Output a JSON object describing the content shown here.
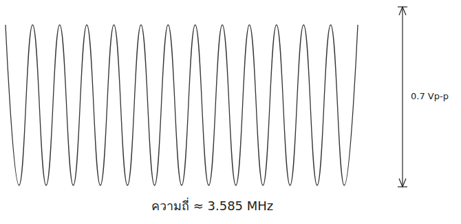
{
  "chart_data": {
    "type": "line",
    "x": [
      0,
      1,
      2,
      3,
      4,
      5,
      6,
      7,
      8,
      9,
      10,
      11,
      12,
      13,
      14,
      15,
      16,
      17,
      18,
      19,
      20,
      21,
      22,
      23,
      24,
      25,
      26
    ],
    "values": [
      0.35,
      -0.35,
      0.35,
      -0.35,
      0.35,
      -0.35,
      0.35,
      -0.35,
      0.35,
      -0.35,
      0.35,
      -0.35,
      0.35,
      -0.35,
      0.35,
      -0.35,
      0.35,
      -0.35,
      0.35,
      -0.35,
      0.35,
      -0.35,
      0.35,
      -0.35,
      0.35,
      -0.35,
      0.35
    ],
    "xlim": [
      0,
      26
    ],
    "ylim": [
      -0.35,
      0.35
    ],
    "color": "#333333",
    "grid": false,
    "tick_labels": false,
    "annotations": [
      "0.7 Vp-p",
      "ความถี่ ≈ 3.585 MHz"
    ]
  }
}
